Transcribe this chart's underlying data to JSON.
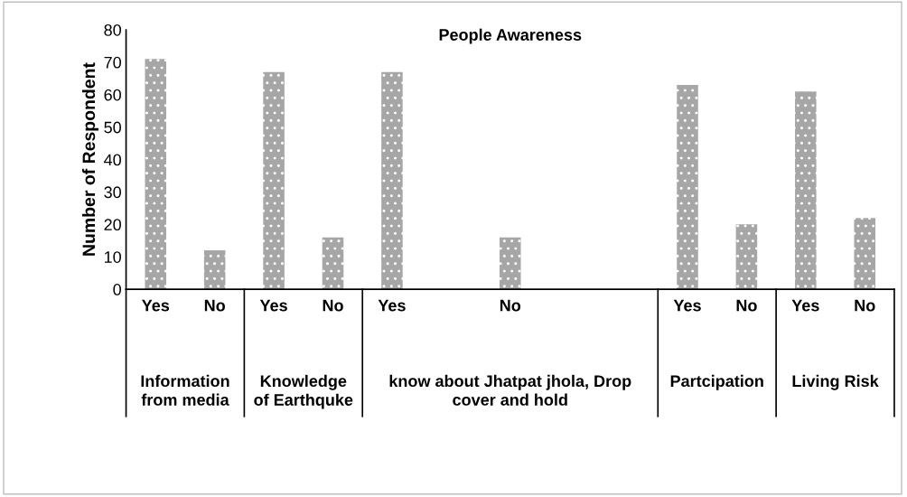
{
  "chart_data": {
    "type": "bar",
    "title": "People Awareness",
    "ylabel": "Number of Respondent",
    "categories": [
      "Yes",
      "No",
      "Yes",
      "No",
      "Yes",
      null,
      "No",
      null,
      null,
      "Yes",
      "No",
      "Yes",
      "No"
    ],
    "values": [
      71,
      12,
      67,
      16,
      67,
      null,
      16,
      null,
      null,
      63,
      20,
      61,
      22
    ],
    "color": "#a6a6a6",
    "ylim": [
      0,
      80
    ],
    "yticks": [
      0,
      10,
      20,
      30,
      40,
      50,
      60,
      70,
      80
    ],
    "grid": false,
    "legend": false,
    "annotations": [
      "Information\nfrom media",
      "Knowledge\nof Earthquke",
      "know about Jhatpat jhola, Drop\ncover and hold",
      "Partcipation",
      "Living Risk"
    ]
  }
}
